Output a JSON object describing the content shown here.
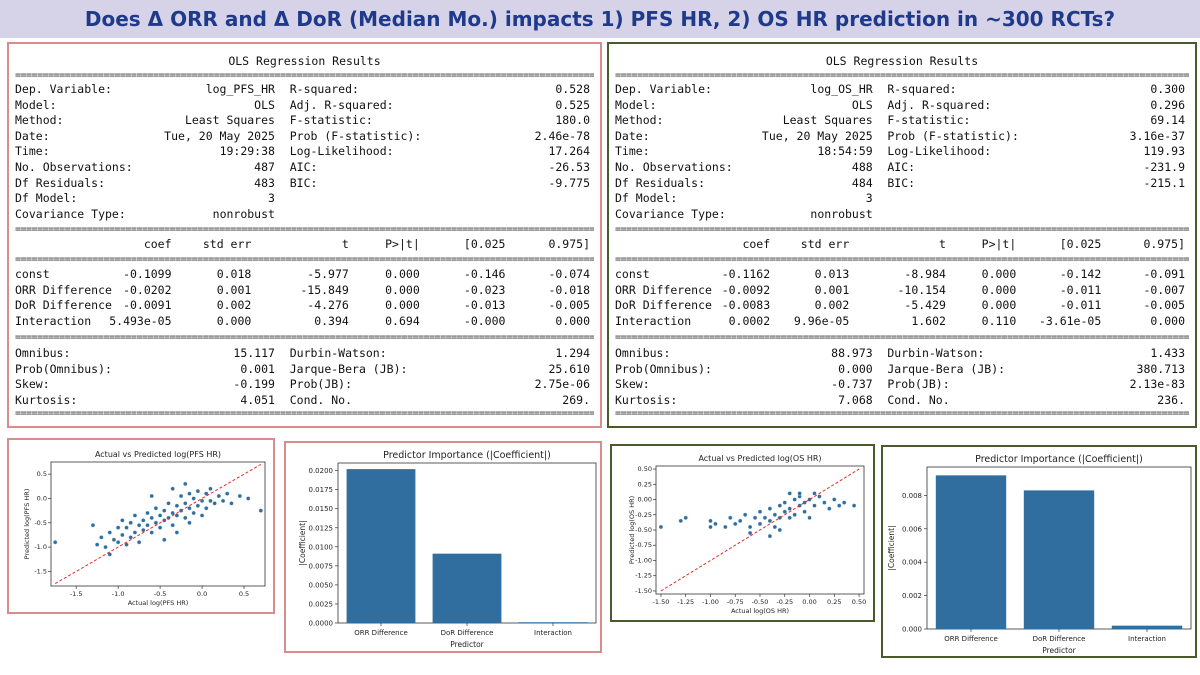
{
  "title": "Does Δ ORR and Δ DoR (Median Mo.) impacts 1) PFS HR, 2) OS HR prediction in ~300 RCTs?",
  "separator": "==============================================================================",
  "regressions": [
    {
      "heading": "OLS Regression Results",
      "top_left": [
        [
          "Dep. Variable:",
          "log_PFS_HR"
        ],
        [
          "Model:",
          "OLS"
        ],
        [
          "Method:",
          "Least Squares"
        ],
        [
          "Date:",
          "Tue, 20 May 2025"
        ],
        [
          "Time:",
          "19:29:38"
        ],
        [
          "No. Observations:",
          "487"
        ],
        [
          "Df Residuals:",
          "483"
        ],
        [
          "Df Model:",
          "3"
        ],
        [
          "Covariance Type:",
          "nonrobust"
        ]
      ],
      "top_right": [
        [
          "R-squared:",
          "0.528"
        ],
        [
          "Adj. R-squared:",
          "0.525"
        ],
        [
          "F-statistic:",
          "180.0"
        ],
        [
          "Prob (F-statistic):",
          "2.46e-78"
        ],
        [
          "Log-Likelihood:",
          "17.264"
        ],
        [
          "AIC:",
          "-26.53"
        ],
        [
          "BIC:",
          "-9.775"
        ]
      ],
      "coef_header": [
        "coef",
        "std err",
        "t",
        "P>|t|",
        "[0.025",
        "0.975]"
      ],
      "coef_rows": [
        [
          "const",
          "-0.1099",
          "0.018",
          "-5.977",
          "0.000",
          "-0.146",
          "-0.074"
        ],
        [
          "ORR Difference",
          "-0.0202",
          "0.001",
          "-15.849",
          "0.000",
          "-0.023",
          "-0.018"
        ],
        [
          "DoR Difference",
          "-0.0091",
          "0.002",
          "-4.276",
          "0.000",
          "-0.013",
          "-0.005"
        ],
        [
          "Interaction",
          "5.493e-05",
          "0.000",
          "0.394",
          "0.694",
          "-0.000",
          "0.000"
        ]
      ],
      "bottom_left": [
        [
          "Omnibus:",
          "15.117"
        ],
        [
          "Prob(Omnibus):",
          "0.001"
        ],
        [
          "Skew:",
          "-0.199"
        ],
        [
          "Kurtosis:",
          "4.051"
        ]
      ],
      "bottom_right": [
        [
          "Durbin-Watson:",
          "1.294"
        ],
        [
          "Jarque-Bera (JB):",
          "25.610"
        ],
        [
          "Prob(JB):",
          "2.75e-06"
        ],
        [
          "Cond. No.",
          "269."
        ]
      ]
    },
    {
      "heading": "OLS Regression Results",
      "top_left": [
        [
          "Dep. Variable:",
          "log_OS_HR"
        ],
        [
          "Model:",
          "OLS"
        ],
        [
          "Method:",
          "Least Squares"
        ],
        [
          "Date:",
          "Tue, 20 May 2025"
        ],
        [
          "Time:",
          "18:54:59"
        ],
        [
          "No. Observations:",
          "488"
        ],
        [
          "Df Residuals:",
          "484"
        ],
        [
          "Df Model:",
          "3"
        ],
        [
          "Covariance Type:",
          "nonrobust"
        ]
      ],
      "top_right": [
        [
          "R-squared:",
          "0.300"
        ],
        [
          "Adj. R-squared:",
          "0.296"
        ],
        [
          "F-statistic:",
          "69.14"
        ],
        [
          "Prob (F-statistic):",
          "3.16e-37"
        ],
        [
          "Log-Likelihood:",
          "119.93"
        ],
        [
          "AIC:",
          "-231.9"
        ],
        [
          "BIC:",
          "-215.1"
        ]
      ],
      "coef_header": [
        "coef",
        "std err",
        "t",
        "P>|t|",
        "[0.025",
        "0.975]"
      ],
      "coef_rows": [
        [
          "const",
          "-0.1162",
          "0.013",
          "-8.984",
          "0.000",
          "-0.142",
          "-0.091"
        ],
        [
          "ORR Difference",
          "-0.0092",
          "0.001",
          "-10.154",
          "0.000",
          "-0.011",
          "-0.007"
        ],
        [
          "DoR Difference",
          "-0.0083",
          "0.002",
          "-5.429",
          "0.000",
          "-0.011",
          "-0.005"
        ],
        [
          "Interaction",
          "0.0002",
          "9.96e-05",
          "1.602",
          "0.110",
          "-3.61e-05",
          "0.000"
        ]
      ],
      "bottom_left": [
        [
          "Omnibus:",
          "88.973"
        ],
        [
          "Prob(Omnibus):",
          "0.000"
        ],
        [
          "Skew:",
          "-0.737"
        ],
        [
          "Kurtosis:",
          "7.068"
        ]
      ],
      "bottom_right": [
        [
          "Durbin-Watson:",
          "1.433"
        ],
        [
          "Jarque-Bera (JB):",
          "380.713"
        ],
        [
          "Prob(JB):",
          "2.13e-83"
        ],
        [
          "Cond. No.",
          "236."
        ]
      ]
    }
  ],
  "chart_data": [
    {
      "type": "scatter",
      "title": "Actual vs Predicted log(PFS HR)",
      "xlabel": "Actual log(PFS HR)",
      "ylabel": "Predicted log(PFS HR)",
      "xlim": [
        -1.8,
        0.75
      ],
      "ylim": [
        -1.8,
        0.75
      ],
      "xticks": [
        "-1.5",
        "-1.0",
        "-0.5",
        "0.0",
        "0.5"
      ],
      "yticks": [
        "-1.5",
        "-1.0",
        "-0.5",
        "0.0",
        "0.5"
      ],
      "reference_line": "y = x",
      "points": [
        [
          -1.75,
          -0.9
        ],
        [
          -1.3,
          -0.55
        ],
        [
          -1.25,
          -0.95
        ],
        [
          -1.2,
          -0.8
        ],
        [
          -1.15,
          -1.0
        ],
        [
          -1.1,
          -1.15
        ],
        [
          -1.1,
          -0.7
        ],
        [
          -1.05,
          -0.85
        ],
        [
          -1.0,
          -0.6
        ],
        [
          -1.0,
          -0.9
        ],
        [
          -0.95,
          -0.75
        ],
        [
          -0.95,
          -0.45
        ],
        [
          -0.9,
          -0.95
        ],
        [
          -0.9,
          -0.6
        ],
        [
          -0.85,
          -0.5
        ],
        [
          -0.85,
          -0.8
        ],
        [
          -0.8,
          -0.7
        ],
        [
          -0.8,
          -0.35
        ],
        [
          -0.75,
          -0.55
        ],
        [
          -0.75,
          -0.9
        ],
        [
          -0.7,
          -0.45
        ],
        [
          -0.7,
          -0.65
        ],
        [
          -0.65,
          -0.3
        ],
        [
          -0.65,
          -0.55
        ],
        [
          -0.6,
          -0.4
        ],
        [
          -0.6,
          -0.7
        ],
        [
          -0.55,
          -0.2
        ],
        [
          -0.55,
          -0.5
        ],
        [
          -0.5,
          -0.35
        ],
        [
          -0.5,
          -0.6
        ],
        [
          -0.45,
          -0.25
        ],
        [
          -0.45,
          -0.45
        ],
        [
          -0.4,
          -0.1
        ],
        [
          -0.4,
          -0.4
        ],
        [
          -0.35,
          -0.3
        ],
        [
          -0.35,
          -0.55
        ],
        [
          -0.3,
          -0.15
        ],
        [
          -0.3,
          -0.35
        ],
        [
          -0.25,
          0.05
        ],
        [
          -0.25,
          -0.25
        ],
        [
          -0.2,
          -0.4
        ],
        [
          -0.2,
          -0.1
        ],
        [
          -0.15,
          0.1
        ],
        [
          -0.15,
          -0.2
        ],
        [
          -0.1,
          -0.3
        ],
        [
          -0.1,
          0.0
        ],
        [
          -0.05,
          -0.15
        ],
        [
          -0.05,
          0.15
        ],
        [
          0.0,
          -0.05
        ],
        [
          0.0,
          -0.35
        ],
        [
          0.05,
          0.1
        ],
        [
          0.05,
          -0.2
        ],
        [
          0.1,
          -0.05
        ],
        [
          0.1,
          0.2
        ],
        [
          0.15,
          -0.1
        ],
        [
          0.2,
          0.05
        ],
        [
          0.25,
          -0.05
        ],
        [
          0.3,
          0.1
        ],
        [
          0.35,
          -0.1
        ],
        [
          0.45,
          0.05
        ],
        [
          0.55,
          0.0
        ],
        [
          0.7,
          -0.25
        ],
        [
          -0.6,
          0.05
        ],
        [
          -0.35,
          0.2
        ],
        [
          -0.2,
          0.3
        ],
        [
          -0.45,
          -0.85
        ],
        [
          -0.3,
          -0.7
        ],
        [
          -0.15,
          -0.5
        ]
      ]
    },
    {
      "type": "bar",
      "title": "Predictor Importance (|Coefficient|)",
      "xlabel": "Predictor",
      "ylabel": "|Coefficient|",
      "categories": [
        "ORR Difference",
        "DoR Difference",
        "Interaction"
      ],
      "values": [
        0.0202,
        0.0091,
        0.0001
      ],
      "ylim": [
        0,
        0.021
      ],
      "yticks": [
        "0.0000",
        "0.0025",
        "0.0050",
        "0.0075",
        "0.0100",
        "0.0125",
        "0.0150",
        "0.0175",
        "0.0200"
      ],
      "color": "#2f6e9e"
    },
    {
      "type": "scatter",
      "title": "Actual vs Predicted log(OS HR)",
      "xlabel": "Actual log(OS HR)",
      "ylabel": "Predicted log(OS HR)",
      "xlim": [
        -1.55,
        0.55
      ],
      "ylim": [
        -1.55,
        0.55
      ],
      "xticks": [
        "-1.50",
        "-1.25",
        "-1.00",
        "-0.75",
        "-0.50",
        "-0.25",
        "0.00",
        "0.25",
        "0.50"
      ],
      "yticks": [
        "-1.50",
        "-1.25",
        "-1.00",
        "-0.75",
        "-0.50",
        "-0.25",
        "0.00",
        "0.25",
        "0.50"
      ],
      "reference_line": "y = x",
      "points": [
        [
          -1.5,
          -0.45
        ],
        [
          -1.3,
          -0.35
        ],
        [
          -1.25,
          -0.3
        ],
        [
          -1.0,
          -0.35
        ],
        [
          -1.0,
          -0.45
        ],
        [
          -0.95,
          -0.4
        ],
        [
          -0.85,
          -0.45
        ],
        [
          -0.8,
          -0.3
        ],
        [
          -0.75,
          -0.4
        ],
        [
          -0.7,
          -0.35
        ],
        [
          -0.65,
          -0.25
        ],
        [
          -0.6,
          -0.45
        ],
        [
          -0.55,
          -0.3
        ],
        [
          -0.5,
          -0.2
        ],
        [
          -0.5,
          -0.4
        ],
        [
          -0.45,
          -0.3
        ],
        [
          -0.4,
          -0.15
        ],
        [
          -0.4,
          -0.35
        ],
        [
          -0.35,
          -0.25
        ],
        [
          -0.35,
          -0.45
        ],
        [
          -0.3,
          -0.1
        ],
        [
          -0.3,
          -0.3
        ],
        [
          -0.25,
          -0.2
        ],
        [
          -0.25,
          -0.05
        ],
        [
          -0.2,
          -0.3
        ],
        [
          -0.2,
          -0.15
        ],
        [
          -0.15,
          0.0
        ],
        [
          -0.15,
          -0.25
        ],
        [
          -0.1,
          -0.1
        ],
        [
          -0.1,
          0.05
        ],
        [
          -0.05,
          -0.2
        ],
        [
          -0.05,
          -0.05
        ],
        [
          0.0,
          0.0
        ],
        [
          0.0,
          -0.3
        ],
        [
          0.05,
          -0.1
        ],
        [
          0.1,
          0.05
        ],
        [
          0.15,
          -0.05
        ],
        [
          0.2,
          -0.15
        ],
        [
          0.25,
          0.0
        ],
        [
          0.3,
          -0.1
        ],
        [
          0.35,
          -0.05
        ],
        [
          0.45,
          -0.1
        ],
        [
          -0.6,
          -0.55
        ],
        [
          -0.4,
          -0.6
        ],
        [
          -0.3,
          -0.5
        ],
        [
          -0.2,
          0.1
        ],
        [
          -0.1,
          0.1
        ],
        [
          0.05,
          0.1
        ]
      ]
    },
    {
      "type": "bar",
      "title": "Predictor Importance (|Coefficient|)",
      "xlabel": "Predictor",
      "ylabel": "|Coefficient|",
      "categories": [
        "ORR Difference",
        "DoR Difference",
        "Interaction"
      ],
      "values": [
        0.0092,
        0.0083,
        0.0002
      ],
      "ylim": [
        0,
        0.0097
      ],
      "yticks": [
        "0.000",
        "0.002",
        "0.004",
        "0.006",
        "0.008"
      ],
      "color": "#2f6e9e"
    }
  ]
}
